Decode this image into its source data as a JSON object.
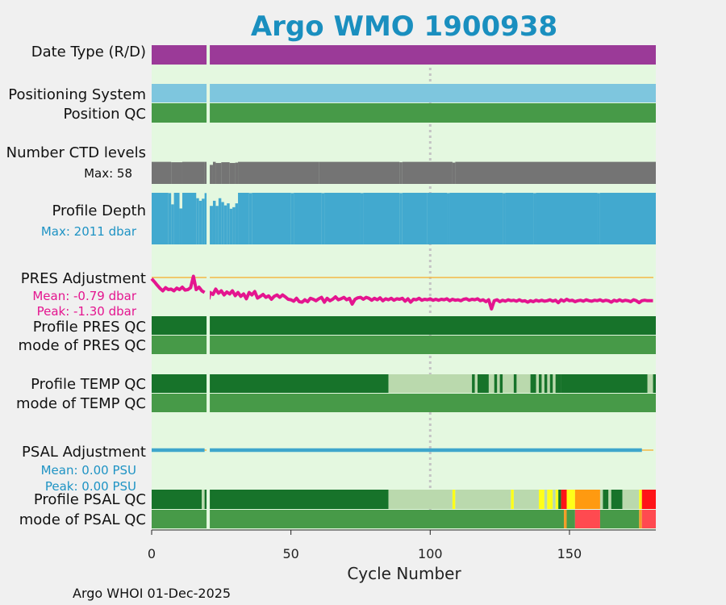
{
  "chart_data": {
    "type": "table",
    "title": "Argo WMO 1900938",
    "xlabel": "Cycle Number",
    "xlim": [
      0,
      181
    ],
    "xticks": [
      0,
      50,
      100,
      150
    ],
    "reference_line_x": 100,
    "gap_cycle": 20,
    "footer": "Argo WHOI 01-Dec-2025",
    "colors": {
      "background": "#e4f8e0",
      "delayed_mode": "#9b3a98",
      "positioning": "#7ec6de",
      "position_qc": "#479a48",
      "ctd_levels": "#747474",
      "profile_depth": "#42a9cf",
      "pres_adjustment": "#e4158f",
      "zero_line": "#f3b845",
      "profile_qc_a": "#17732a",
      "profile_qc_b": "#bad9ad",
      "mode_qc_1": "#479a48",
      "psal_adjustment": "#3ea6cc",
      "qc_yellow": "#ffff19",
      "qc_orange": "#ff9a10",
      "qc_red": "#ff1418",
      "qc_mode_red": "#ff4a50",
      "qc_mode_orange": "#f49d27"
    },
    "rows": [
      {
        "key": "date_type",
        "label": "Date Type (R/D)",
        "segments": [
          {
            "from": 0,
            "to": 181,
            "color": "#9b3a98"
          }
        ]
      },
      {
        "key": "positioning_system",
        "label": "Positioning System",
        "segments": [
          {
            "from": 0,
            "to": 181,
            "color": "#7ec6de"
          }
        ]
      },
      {
        "key": "position_qc",
        "label": "Position QC",
        "segments": [
          {
            "from": 0,
            "to": 181,
            "color": "#479a48"
          }
        ]
      },
      {
        "key": "ctd_levels",
        "label": "Number CTD levels",
        "sublabel": "Max: 58",
        "sublabel_color": "#111111",
        "max": 58
      },
      {
        "key": "profile_depth",
        "label": "Profile Depth",
        "sublabel": "Max: 2011 dbar",
        "sublabel_color": "#1e93c4",
        "max": 2011
      },
      {
        "key": "pres_adjustment",
        "label": "PRES Adjustment",
        "sublabel": "Mean: -0.79 dbar",
        "sublabel2": "Peak: -1.30 dbar",
        "sublabel_color": "#e4158f",
        "mean": -0.79,
        "peak": -1.3
      },
      {
        "key": "profile_pres_qc",
        "label": "Profile PRES QC",
        "segments": [
          {
            "from": 0,
            "to": 181,
            "color": "#17732a"
          }
        ]
      },
      {
        "key": "mode_pres_qc",
        "label": "mode of PRES QC",
        "segments": [
          {
            "from": 0,
            "to": 181,
            "color": "#479a48"
          }
        ]
      },
      {
        "key": "profile_temp_qc",
        "label": "Profile TEMP QC",
        "segments": [
          {
            "from": 0,
            "to": 85,
            "color": "#17732a"
          },
          {
            "from": 85,
            "to": 115,
            "color": "#bad9ad"
          },
          {
            "from": 115,
            "to": 116,
            "color": "#17732a"
          },
          {
            "from": 117,
            "to": 121,
            "color": "#17732a"
          },
          {
            "from": 123,
            "to": 124,
            "color": "#17732a"
          },
          {
            "from": 125,
            "to": 126,
            "color": "#17732a"
          },
          {
            "from": 130,
            "to": 131,
            "color": "#17732a"
          },
          {
            "from": 136,
            "to": 138,
            "color": "#17732a"
          },
          {
            "from": 139,
            "to": 140,
            "color": "#17732a"
          },
          {
            "from": 141,
            "to": 142,
            "color": "#17732a"
          },
          {
            "from": 143,
            "to": 144,
            "color": "#17732a"
          },
          {
            "from": 145,
            "to": 147,
            "color": "#17732a"
          },
          {
            "from": 147,
            "to": 178,
            "color": "#17732a"
          },
          {
            "from": 178,
            "to": 181,
            "color": "#bad9ad"
          },
          {
            "from": 180,
            "to": 181,
            "color": "#17732a"
          }
        ],
        "fill": "#bad9ad"
      },
      {
        "key": "mode_temp_qc",
        "label": "mode of TEMP QC",
        "segments": [
          {
            "from": 0,
            "to": 181,
            "color": "#479a48"
          }
        ]
      },
      {
        "key": "psal_adjustment",
        "label": "PSAL Adjustment",
        "sublabel": "Mean: 0.00 PSU",
        "sublabel2": "Peak: 0.00 PSU",
        "sublabel_color": "#1e93c4",
        "mean": 0.0,
        "peak": 0.0,
        "end_cycle": 176
      },
      {
        "key": "profile_psal_qc",
        "label": "Profile PSAL QC",
        "segments": [
          {
            "from": 0,
            "to": 18,
            "color": "#17732a"
          },
          {
            "from": 18,
            "to": 19,
            "color": "#bad9ad"
          },
          {
            "from": 19,
            "to": 85,
            "color": "#17732a"
          },
          {
            "from": 85,
            "to": 108,
            "color": "#bad9ad"
          },
          {
            "from": 108,
            "to": 109,
            "color": "#ffff19"
          },
          {
            "from": 109,
            "to": 129,
            "color": "#bad9ad"
          },
          {
            "from": 129,
            "to": 130,
            "color": "#ffff19"
          },
          {
            "from": 130,
            "to": 139,
            "color": "#bad9ad"
          },
          {
            "from": 139,
            "to": 141,
            "color": "#ffff19"
          },
          {
            "from": 141,
            "to": 142,
            "color": "#bad9ad"
          },
          {
            "from": 142,
            "to": 144,
            "color": "#ffff19"
          },
          {
            "from": 144,
            "to": 145,
            "color": "#bad9ad"
          },
          {
            "from": 145,
            "to": 146,
            "color": "#ffff19"
          },
          {
            "from": 146,
            "to": 147,
            "color": "#17732a"
          },
          {
            "from": 147,
            "to": 149,
            "color": "#ff1418"
          },
          {
            "from": 149,
            "to": 152,
            "color": "#ffff19"
          },
          {
            "from": 152,
            "to": 161,
            "color": "#ff9a10"
          },
          {
            "from": 161,
            "to": 162,
            "color": "#bad9ad"
          },
          {
            "from": 162,
            "to": 164,
            "color": "#17732a"
          },
          {
            "from": 164,
            "to": 165,
            "color": "#bad9ad"
          },
          {
            "from": 165,
            "to": 169,
            "color": "#17732a"
          },
          {
            "from": 169,
            "to": 175,
            "color": "#bad9ad"
          },
          {
            "from": 175,
            "to": 176,
            "color": "#ffff19"
          },
          {
            "from": 176,
            "to": 181,
            "color": "#ff1418"
          }
        ]
      },
      {
        "key": "mode_psal_qc",
        "label": "mode of PSAL QC",
        "segments": [
          {
            "from": 0,
            "to": 148,
            "color": "#479a48"
          },
          {
            "from": 148,
            "to": 149,
            "color": "#f49d27"
          },
          {
            "from": 149,
            "to": 152,
            "color": "#479a48"
          },
          {
            "from": 152,
            "to": 161,
            "color": "#ff4a50"
          },
          {
            "from": 161,
            "to": 175,
            "color": "#479a48"
          },
          {
            "from": 175,
            "to": 176,
            "color": "#f49d27"
          },
          {
            "from": 176,
            "to": 181,
            "color": "#ff4a50"
          }
        ]
      }
    ],
    "ctd_levels_values": [
      [
        0,
        58
      ],
      [
        7,
        57
      ],
      [
        11,
        58
      ],
      [
        19,
        58
      ],
      [
        20.3,
        50
      ],
      [
        22,
        58
      ],
      [
        23,
        55
      ],
      [
        25,
        57
      ],
      [
        28,
        55
      ],
      [
        30,
        56
      ],
      [
        31,
        58
      ],
      [
        60,
        58
      ],
      [
        89,
        57
      ],
      [
        90,
        58
      ],
      [
        108,
        56
      ],
      [
        109,
        58
      ],
      [
        181,
        58
      ]
    ],
    "profile_depth_values": [
      [
        0,
        2011
      ],
      [
        6,
        2000
      ],
      [
        7,
        1560
      ],
      [
        8,
        2011
      ],
      [
        10,
        1400
      ],
      [
        11,
        2011
      ],
      [
        16,
        1800
      ],
      [
        17,
        1700
      ],
      [
        18,
        1780
      ],
      [
        19,
        2000
      ],
      [
        20.5,
        1500
      ],
      [
        22,
        1700
      ],
      [
        23,
        1500
      ],
      [
        24,
        1800
      ],
      [
        25,
        1650
      ],
      [
        26,
        1520
      ],
      [
        27,
        1600
      ],
      [
        28,
        1390
      ],
      [
        29,
        1450
      ],
      [
        30,
        1600
      ],
      [
        31,
        2011
      ],
      [
        35,
        2000
      ],
      [
        36,
        2011
      ],
      [
        50,
        2000
      ],
      [
        51,
        2011
      ],
      [
        61,
        2000
      ],
      [
        62,
        2011
      ],
      [
        75,
        2000
      ],
      [
        76,
        2011
      ],
      [
        89,
        2000
      ],
      [
        90,
        2011
      ],
      [
        99,
        2011
      ],
      [
        106,
        2000
      ],
      [
        107,
        2011
      ],
      [
        126,
        2000
      ],
      [
        127,
        2011
      ],
      [
        137,
        2000
      ],
      [
        138,
        2011
      ],
      [
        160,
        2000
      ],
      [
        161,
        2011
      ],
      [
        181,
        2011
      ]
    ],
    "pres_adjustment_values": [
      [
        0,
        -0.05
      ],
      [
        1,
        -0.18
      ],
      [
        2,
        -0.32
      ],
      [
        3,
        -0.45
      ],
      [
        4,
        -0.55
      ],
      [
        5,
        -0.42
      ],
      [
        6,
        -0.5
      ],
      [
        7,
        -0.48
      ],
      [
        8,
        -0.55
      ],
      [
        9,
        -0.44
      ],
      [
        10,
        -0.5
      ],
      [
        11,
        -0.4
      ],
      [
        12,
        -0.52
      ],
      [
        13,
        -0.5
      ],
      [
        14,
        -0.42
      ],
      [
        15,
        0.05
      ],
      [
        16,
        -0.5
      ],
      [
        17,
        -0.4
      ],
      [
        18,
        -0.55
      ],
      [
        19,
        -0.62
      ],
      [
        20.5,
        -0.9
      ],
      [
        21,
        -0.62
      ],
      [
        22,
        -0.7
      ],
      [
        23,
        -0.48
      ],
      [
        24,
        -0.65
      ],
      [
        25,
        -0.55
      ],
      [
        26,
        -0.72
      ],
      [
        27,
        -0.6
      ],
      [
        28,
        -0.68
      ],
      [
        29,
        -0.55
      ],
      [
        30,
        -0.75
      ],
      [
        31,
        -0.62
      ],
      [
        32,
        -0.78
      ],
      [
        33,
        -0.68
      ],
      [
        34,
        -0.88
      ],
      [
        35,
        -0.62
      ],
      [
        36,
        -0.72
      ],
      [
        37,
        -0.58
      ],
      [
        38,
        -0.85
      ],
      [
        39,
        -0.78
      ],
      [
        40,
        -0.7
      ],
      [
        41,
        -0.82
      ],
      [
        42,
        -0.76
      ],
      [
        43,
        -0.9
      ],
      [
        44,
        -0.78
      ],
      [
        45,
        -0.72
      ],
      [
        46,
        -0.82
      ],
      [
        47,
        -0.72
      ],
      [
        48,
        -0.8
      ],
      [
        49,
        -0.9
      ],
      [
        50,
        -0.92
      ],
      [
        51,
        -0.98
      ],
      [
        52,
        -0.86
      ],
      [
        53,
        -1.0
      ],
      [
        54,
        -1.02
      ],
      [
        55,
        -0.92
      ],
      [
        56,
        -1.0
      ],
      [
        57,
        -0.86
      ],
      [
        58,
        -0.9
      ],
      [
        59,
        -0.96
      ],
      [
        60,
        -0.88
      ],
      [
        61,
        -0.82
      ],
      [
        62,
        -1.02
      ],
      [
        63,
        -0.86
      ],
      [
        64,
        -0.96
      ],
      [
        65,
        -0.9
      ],
      [
        66,
        -0.8
      ],
      [
        67,
        -0.92
      ],
      [
        68,
        -0.88
      ],
      [
        69,
        -0.82
      ],
      [
        70,
        -0.92
      ],
      [
        71,
        -0.86
      ],
      [
        72,
        -1.1
      ],
      [
        73,
        -0.9
      ],
      [
        74,
        -0.84
      ],
      [
        75,
        -0.82
      ],
      [
        76,
        -0.9
      ],
      [
        77,
        -0.82
      ],
      [
        78,
        -0.86
      ],
      [
        79,
        -0.94
      ],
      [
        80,
        -0.86
      ],
      [
        81,
        -0.92
      ],
      [
        82,
        -0.84
      ],
      [
        83,
        -0.96
      ],
      [
        84,
        -0.88
      ],
      [
        85,
        -0.92
      ],
      [
        86,
        -0.86
      ],
      [
        87,
        -0.94
      ],
      [
        88,
        -0.88
      ],
      [
        89,
        -0.9
      ],
      [
        90,
        -0.86
      ],
      [
        91,
        -0.98
      ],
      [
        92,
        -0.88
      ],
      [
        93,
        -1.02
      ],
      [
        94,
        -0.9
      ],
      [
        95,
        -0.92
      ],
      [
        96,
        -0.86
      ],
      [
        97,
        -0.94
      ],
      [
        98,
        -0.9
      ],
      [
        99,
        -0.92
      ],
      [
        100,
        -0.88
      ],
      [
        101,
        -0.94
      ],
      [
        102,
        -0.9
      ],
      [
        103,
        -0.94
      ],
      [
        104,
        -0.9
      ],
      [
        105,
        -0.92
      ],
      [
        106,
        -0.88
      ],
      [
        107,
        -0.96
      ],
      [
        108,
        -0.9
      ],
      [
        109,
        -0.94
      ],
      [
        110,
        -0.92
      ],
      [
        111,
        -0.96
      ],
      [
        112,
        -0.9
      ],
      [
        113,
        -0.88
      ],
      [
        114,
        -0.94
      ],
      [
        115,
        -0.9
      ],
      [
        116,
        -0.92
      ],
      [
        117,
        -0.88
      ],
      [
        118,
        -0.96
      ],
      [
        119,
        -0.92
      ],
      [
        120,
        -1.0
      ],
      [
        121,
        -0.92
      ],
      [
        122,
        -1.3
      ],
      [
        123,
        -0.96
      ],
      [
        124,
        -0.92
      ],
      [
        125,
        -1.0
      ],
      [
        126,
        -0.94
      ],
      [
        127,
        -0.98
      ],
      [
        128,
        -0.92
      ],
      [
        129,
        -0.96
      ],
      [
        130,
        -0.94
      ],
      [
        131,
        -0.98
      ],
      [
        132,
        -0.92
      ],
      [
        133,
        -0.98
      ],
      [
        134,
        -0.96
      ],
      [
        135,
        -1.02
      ],
      [
        136,
        -0.96
      ],
      [
        137,
        -1.0
      ],
      [
        138,
        -0.94
      ],
      [
        139,
        -0.98
      ],
      [
        140,
        -0.94
      ],
      [
        141,
        -0.98
      ],
      [
        142,
        -0.96
      ],
      [
        143,
        -0.92
      ],
      [
        144,
        -0.98
      ],
      [
        145,
        -0.94
      ],
      [
        146,
        -1.04
      ],
      [
        147,
        -0.92
      ],
      [
        148,
        -0.98
      ],
      [
        149,
        -0.9
      ],
      [
        150,
        -0.96
      ],
      [
        151,
        -0.94
      ],
      [
        152,
        -1.0
      ],
      [
        153,
        -0.96
      ],
      [
        154,
        -0.94
      ],
      [
        155,
        -0.98
      ],
      [
        156,
        -0.92
      ],
      [
        157,
        -0.96
      ],
      [
        158,
        -0.98
      ],
      [
        159,
        -0.94
      ],
      [
        160,
        -0.96
      ],
      [
        161,
        -0.92
      ],
      [
        162,
        -0.98
      ],
      [
        163,
        -0.94
      ],
      [
        164,
        -0.96
      ],
      [
        165,
        -1.02
      ],
      [
        166,
        -0.94
      ],
      [
        167,
        -0.98
      ],
      [
        168,
        -0.92
      ],
      [
        169,
        -0.98
      ],
      [
        170,
        -0.94
      ],
      [
        171,
        -0.96
      ],
      [
        172,
        -1.0
      ],
      [
        173,
        -0.92
      ],
      [
        174,
        -0.96
      ],
      [
        175,
        -1.04
      ],
      [
        176,
        -0.96
      ],
      [
        177,
        -0.94
      ],
      [
        178,
        -0.96
      ],
      [
        179,
        -0.96
      ],
      [
        180,
        -0.96
      ]
    ]
  }
}
